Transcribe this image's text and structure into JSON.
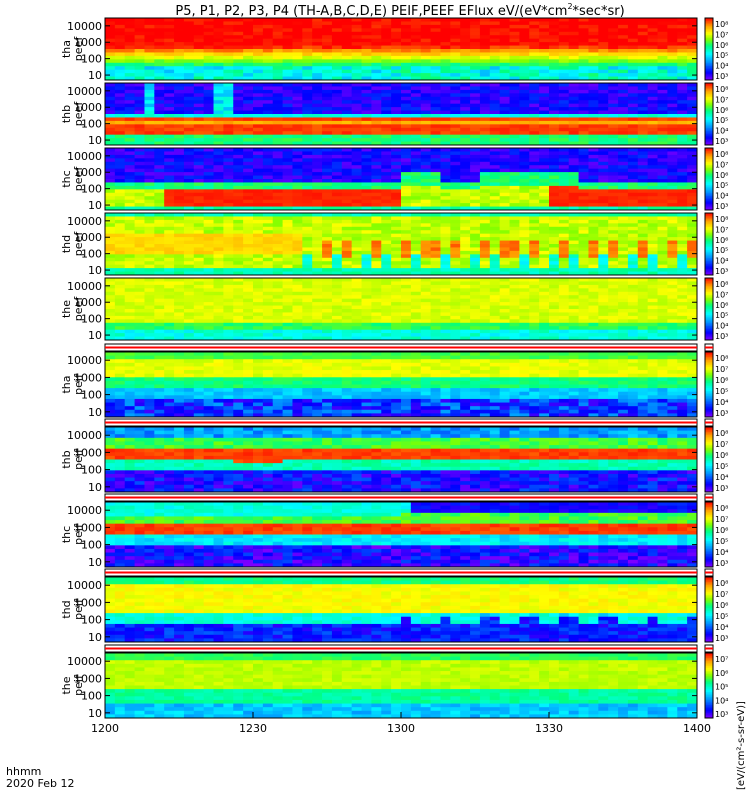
{
  "title_parts": {
    "main": "P5, P1, P2, P3, P4 (TH-A,B,C,D,E) PEIF,PEEF EFlux eV/(eV*cm",
    "sup": "2",
    "tail": "*sec*sr)"
  },
  "footer": {
    "time_format": "hhmm",
    "date": "2020 Feb 12",
    "colorbar_axis_label": "[eV/(cm²-s-sr-eV)]"
  },
  "chart_data": {
    "type": "heatmap",
    "x_ticks": [
      "1200",
      "1230",
      "1300",
      "1330",
      "1400"
    ],
    "x_range": [
      "12:00",
      "14:00"
    ],
    "y_scale": "log",
    "y_range_eV": [
      5,
      30000
    ],
    "y_ticks": [
      "10000",
      "1000",
      "100",
      "10"
    ],
    "colorscale": [
      "#7f00ff",
      "#0000ff",
      "#00a0ff",
      "#00ffff",
      "#00ff80",
      "#80ff00",
      "#ffff00",
      "#ffa000",
      "#ff0000",
      "#ffffff"
    ],
    "panels": [
      {
        "id": "tha-peef",
        "label_top": "tha",
        "label_bottom": "peef",
        "cb_ticks": [
          "10⁸",
          "10⁷",
          "10⁶",
          "10⁵",
          "10⁴",
          "10³"
        ],
        "dominant_energy_band": "broad, 300–30000 eV"
      },
      {
        "id": "thb-peef",
        "label_top": "thb",
        "label_bottom": "peef",
        "cb_ticks": [
          "10⁸",
          "10⁷",
          "10⁶",
          "10⁵",
          "10⁴",
          "10³"
        ],
        "dominant_energy_band": "20–200 eV"
      },
      {
        "id": "thc-peef",
        "label_top": "thc",
        "label_bottom": "peef",
        "cb_ticks": [
          "10⁸",
          "10⁷",
          "10⁶",
          "10⁵",
          "10⁴",
          "10³"
        ],
        "dominant_energy_band": "10–100 eV"
      },
      {
        "id": "thd-peef",
        "label_top": "thd",
        "label_bottom": "peef",
        "cb_ticks": [
          "10⁸",
          "10⁷",
          "10⁶",
          "10⁵",
          "10⁴",
          "10³"
        ],
        "dominant_energy_band": "50–3000 eV, patchy after 12:45"
      },
      {
        "id": "the-peef",
        "label_top": "the",
        "label_bottom": "peef",
        "cb_ticks": [
          "10⁸",
          "10⁷",
          "10⁶",
          "10⁵",
          "10⁴",
          "10³"
        ],
        "dominant_energy_band": "broad, 30–20000 eV"
      },
      {
        "id": "tha-peif",
        "label_top": "tha",
        "label_bottom": "peif",
        "cb_ticks": [
          "10⁸",
          "10⁷",
          "10⁶",
          "10⁵",
          "10⁴",
          "10³"
        ],
        "dominant_energy_band": "1000–20000 eV"
      },
      {
        "id": "thb-peif",
        "label_top": "thb",
        "label_bottom": "peif",
        "cb_ticks": [
          "10⁸",
          "10⁷",
          "10⁶",
          "10⁵",
          "10⁴",
          "10³"
        ],
        "dominant_energy_band": "400–1500 eV"
      },
      {
        "id": "thc-peif",
        "label_top": "thc",
        "label_bottom": "peif",
        "cb_ticks": [
          "10⁸",
          "10⁷",
          "10⁶",
          "10⁵",
          "10⁴",
          "10³"
        ],
        "dominant_energy_band": "500–2000 eV"
      },
      {
        "id": "thd-peif",
        "label_top": "thd",
        "label_bottom": "peif",
        "cb_ticks": [
          "10⁸",
          "10⁷",
          "10⁶",
          "10⁵",
          "10⁴",
          "10³"
        ],
        "dominant_energy_band": "200–10000 eV"
      },
      {
        "id": "the-peif",
        "label_top": "the",
        "label_bottom": "peif",
        "cb_ticks": [
          "10⁷",
          "10⁶",
          "10⁵",
          "10⁴",
          "10³"
        ],
        "dominant_energy_band": "100–20000 eV"
      }
    ]
  }
}
